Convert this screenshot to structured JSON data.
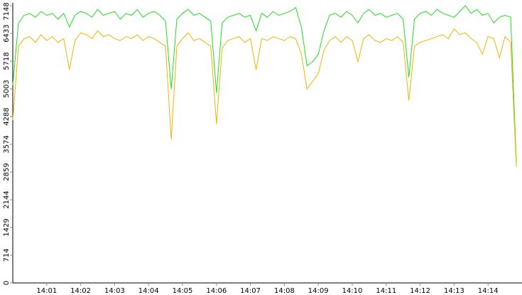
{
  "chart_data": {
    "type": "line",
    "categories": [
      null,
      null,
      null,
      null,
      null,
      null,
      "14:01",
      null,
      null,
      null,
      null,
      null,
      "14:02",
      null,
      null,
      null,
      null,
      null,
      "14:03",
      null,
      null,
      null,
      null,
      null,
      "14:04",
      null,
      null,
      null,
      null,
      null,
      "14:05",
      null,
      null,
      null,
      null,
      null,
      "14:06",
      null,
      null,
      null,
      null,
      null,
      "14:07",
      null,
      null,
      null,
      null,
      null,
      "14:08",
      null,
      null,
      null,
      null,
      null,
      "14:09",
      null,
      null,
      null,
      null,
      null,
      "14:10",
      null,
      null,
      null,
      null,
      null,
      "14:11",
      null,
      null,
      null,
      null,
      null,
      "14:12",
      null,
      null,
      null,
      null,
      null,
      "14:13",
      null,
      null,
      null,
      null,
      null,
      "14:14",
      null,
      null,
      null,
      null,
      null
    ],
    "series": [
      {
        "color": "#22dd22",
        "values": [
          5100,
          6700,
          6900,
          6950,
          6850,
          7000,
          6900,
          6950,
          6800,
          6950,
          6600,
          6900,
          7000,
          6950,
          6850,
          7050,
          6900,
          6950,
          7000,
          6800,
          6950,
          6900,
          7050,
          6850,
          6950,
          7000,
          6900,
          6750,
          5000,
          6800,
          6950,
          7050,
          6900,
          6950,
          6850,
          6750,
          4900,
          6700,
          6850,
          6900,
          6950,
          6850,
          6900,
          6500,
          6950,
          6850,
          7000,
          6900,
          6950,
          7000,
          7100,
          6600,
          5600,
          5700,
          5900,
          6500,
          6900,
          6950,
          6850,
          7000,
          6900,
          6700,
          6950,
          7050,
          6900,
          6950,
          6850,
          6900,
          6950,
          6800,
          5300,
          6800,
          6950,
          7000,
          6900,
          7050,
          6950,
          6900,
          6850,
          7000,
          7150,
          6950,
          7050,
          6900,
          6950,
          6700,
          6850,
          6900,
          6850,
          3100
        ]
      },
      {
        "color": "#f0b400",
        "values": [
          4200,
          6100,
          6300,
          6350,
          6200,
          6400,
          6250,
          6350,
          6200,
          6300,
          5500,
          6250,
          6450,
          6400,
          6300,
          6500,
          6350,
          6400,
          6300,
          6250,
          6350,
          6300,
          6400,
          6250,
          6350,
          6300,
          6200,
          6100,
          3700,
          6100,
          6300,
          6450,
          6250,
          6300,
          6200,
          6100,
          4100,
          6050,
          6250,
          6300,
          6350,
          6200,
          6300,
          5500,
          6300,
          6250,
          6350,
          6300,
          6250,
          6350,
          6300,
          5900,
          5000,
          5200,
          5400,
          6000,
          6250,
          6350,
          6200,
          6350,
          6250,
          5700,
          6300,
          6400,
          6250,
          6200,
          6300,
          6250,
          6350,
          6200,
          4700,
          6100,
          6200,
          6250,
          6300,
          6350,
          6400,
          6300,
          6550,
          6400,
          6450,
          6300,
          6200,
          5900,
          6350,
          6300,
          5800,
          6350,
          6200,
          3000
        ]
      }
    ],
    "ylim": [
      0,
      7148
    ],
    "yticks": [
      0,
      714,
      1429,
      2144,
      2859,
      3574,
      4288,
      5003,
      5718,
      6433,
      7148
    ]
  }
}
